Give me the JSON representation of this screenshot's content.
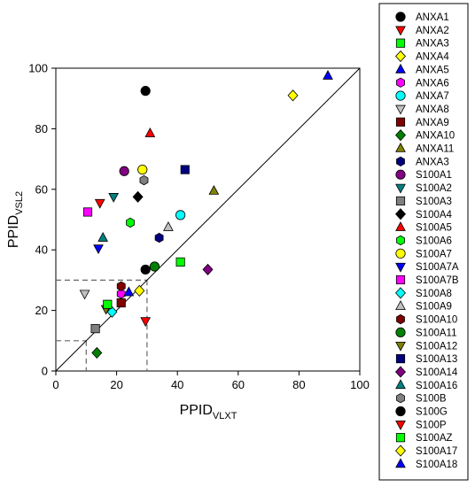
{
  "chart_data": {
    "type": "scatter",
    "title": "",
    "xlabel": {
      "main": "PPID",
      "sub": "VLXT"
    },
    "ylabel": {
      "main": "PPID",
      "sub": "VSL2"
    },
    "xlim": [
      0,
      100
    ],
    "ylim": [
      0,
      100
    ],
    "xticks": [
      "0",
      "20",
      "40",
      "60",
      "80",
      "100"
    ],
    "yticks": [
      "0",
      "20",
      "40",
      "60",
      "80",
      "100"
    ],
    "grid": false,
    "legend_position": "right, outside plot",
    "reference_line": {
      "from": [
        0,
        0
      ],
      "to": [
        100,
        100
      ]
    },
    "threshold_lines": [
      10,
      30
    ],
    "series": [
      {
        "name": "ANXA1",
        "marker": "circle",
        "color": "#000000",
        "x": 29.5,
        "y": 92.5
      },
      {
        "name": "ANXA2",
        "marker": "triangle-down",
        "color": "#ff0000",
        "x": 14.5,
        "y": 55.5
      },
      {
        "name": "ANXA3",
        "marker": "square",
        "color": "#00ff00",
        "x": 41.0,
        "y": 36.0
      },
      {
        "name": "ANXA4",
        "marker": "diamond",
        "color": "#ffff00",
        "x": 78.0,
        "y": 91.0
      },
      {
        "name": "ANXA5",
        "marker": "triangle-up",
        "color": "#0000ff",
        "x": 89.5,
        "y": 97.5
      },
      {
        "name": "ANXA6",
        "marker": "hexagon",
        "color": "#ff00ff",
        "x": 21.5,
        "y": 25.5
      },
      {
        "name": "ANXA7",
        "marker": "circle",
        "color": "#00ffff",
        "x": 41.0,
        "y": 51.5
      },
      {
        "name": "ANXA8",
        "marker": "triangle-down",
        "color": "#c0c0c0",
        "x": 9.5,
        "y": 25.5
      },
      {
        "name": "ANXA9",
        "marker": "square",
        "color": "#800000",
        "x": 21.5,
        "y": 22.5
      },
      {
        "name": "ANXA10",
        "marker": "diamond",
        "color": "#008000",
        "x": 13.5,
        "y": 6.0
      },
      {
        "name": "ANXA11",
        "marker": "triangle-up",
        "color": "#808000",
        "x": 52.0,
        "y": 59.5
      },
      {
        "name": "ANXA3",
        "marker": "hexagon",
        "color": "#000080",
        "x": 34.0,
        "y": 44.0
      },
      {
        "name": "S100A1",
        "marker": "circle",
        "color": "#800080",
        "x": 22.5,
        "y": 66.0
      },
      {
        "name": "S100A2",
        "marker": "triangle-down",
        "color": "#008080",
        "x": 19.0,
        "y": 57.5
      },
      {
        "name": "S100A3",
        "marker": "square",
        "color": "#808080",
        "x": 13.0,
        "y": 14.0
      },
      {
        "name": "S100A4",
        "marker": "diamond",
        "color": "#000000",
        "x": 27.0,
        "y": 57.5
      },
      {
        "name": "S100A5",
        "marker": "triangle-up",
        "color": "#ff0000",
        "x": 31.0,
        "y": 78.5
      },
      {
        "name": "S100A6",
        "marker": "hexagon",
        "color": "#00ff00",
        "x": 24.5,
        "y": 49.0
      },
      {
        "name": "S100A7",
        "marker": "circle",
        "color": "#ffff00",
        "x": 28.5,
        "y": 66.5
      },
      {
        "name": "S100A7A",
        "marker": "triangle-down",
        "color": "#0000ff",
        "x": 14.0,
        "y": 40.5
      },
      {
        "name": "S100A7B",
        "marker": "square",
        "color": "#ff00ff",
        "x": 10.5,
        "y": 52.5
      },
      {
        "name": "S100A8",
        "marker": "diamond",
        "color": "#00ffff",
        "x": 18.5,
        "y": 19.5
      },
      {
        "name": "S100A9",
        "marker": "triangle-up",
        "color": "#c0c0c0",
        "x": 37.0,
        "y": 47.5
      },
      {
        "name": "S100A10",
        "marker": "hexagon",
        "color": "#800000",
        "x": 21.5,
        "y": 28.0
      },
      {
        "name": "S100A11",
        "marker": "circle",
        "color": "#008000",
        "x": 32.5,
        "y": 34.5
      },
      {
        "name": "S100A12",
        "marker": "triangle-down",
        "color": "#808000",
        "x": 16.5,
        "y": 20.5
      },
      {
        "name": "S100A13",
        "marker": "square",
        "color": "#000080",
        "x": 42.5,
        "y": 66.5
      },
      {
        "name": "S100A14",
        "marker": "diamond",
        "color": "#800080",
        "x": 50.0,
        "y": 33.5
      },
      {
        "name": "S100A16",
        "marker": "triangle-up",
        "color": "#008080",
        "x": 15.5,
        "y": 44.0
      },
      {
        "name": "S100B",
        "marker": "hexagon",
        "color": "#808080",
        "x": 29.0,
        "y": 63.0
      },
      {
        "name": "S100G",
        "marker": "circle",
        "color": "#000000",
        "x": 29.5,
        "y": 33.5
      },
      {
        "name": "S100P",
        "marker": "triangle-down",
        "color": "#ff0000",
        "x": 29.5,
        "y": 16.5
      },
      {
        "name": "S100AZ",
        "marker": "square",
        "color": "#00ff00",
        "x": 17.0,
        "y": 22.0
      },
      {
        "name": "S100A17",
        "marker": "diamond",
        "color": "#ffff00",
        "x": 27.5,
        "y": 26.5
      },
      {
        "name": "S100A18",
        "marker": "triangle-up",
        "color": "#0000ff",
        "x": 24.0,
        "y": 26.0
      }
    ]
  }
}
